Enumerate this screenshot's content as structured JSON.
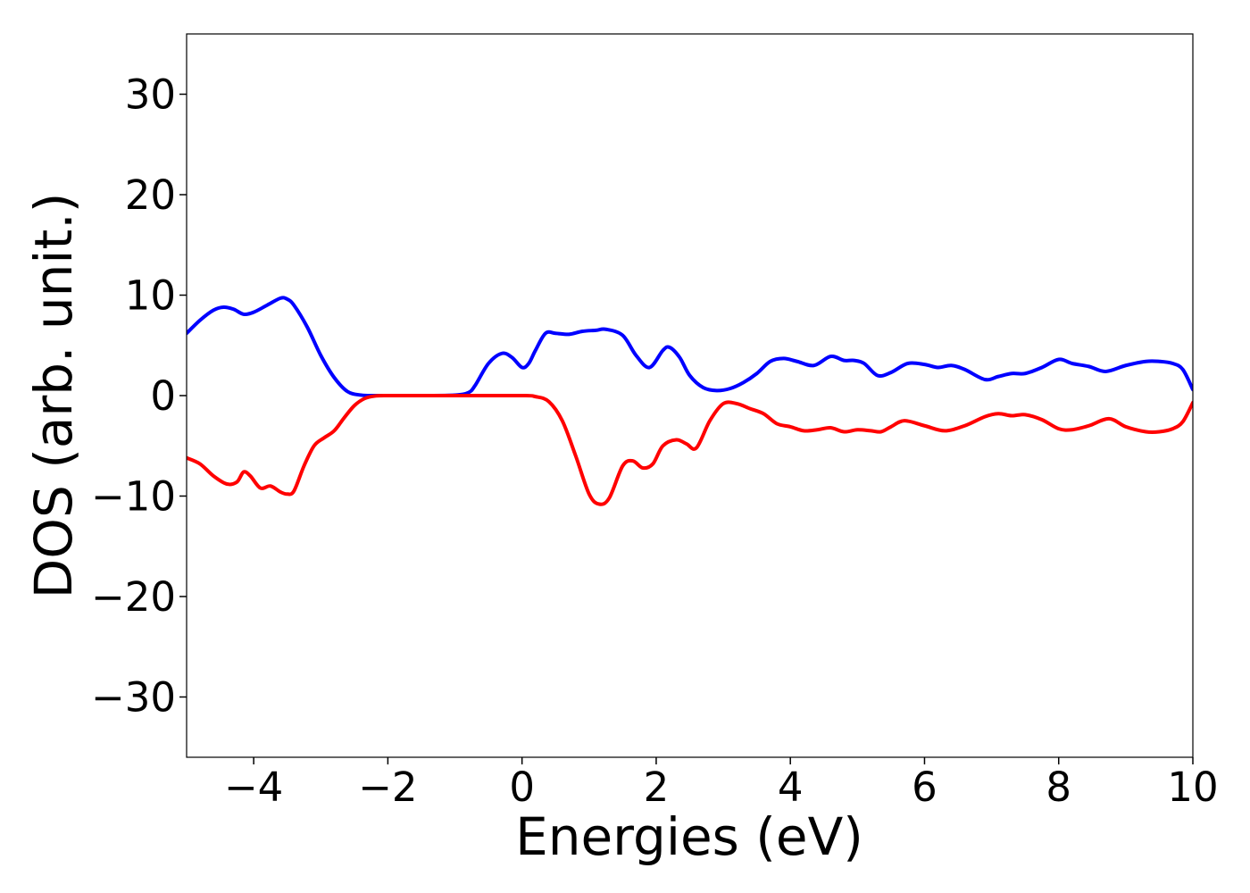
{
  "chart_data": {
    "type": "line",
    "title": "",
    "xlabel": "Energies (eV)",
    "ylabel": "DOS (arb. unit.)",
    "xlim": [
      -5,
      10
    ],
    "ylim": [
      -36,
      36
    ],
    "xticks": [
      -4,
      -2,
      0,
      2,
      4,
      6,
      8,
      10
    ],
    "yticks": [
      -30,
      -20,
      -10,
      0,
      10,
      20,
      30
    ],
    "xtick_labels": [
      "−4",
      "−2",
      "0",
      "2",
      "4",
      "6",
      "8",
      "10"
    ],
    "ytick_labels": [
      "−30",
      "−20",
      "−10",
      "0",
      "10",
      "20",
      "30"
    ],
    "grid": false,
    "legend": "none",
    "series": [
      {
        "color": "#0000ff",
        "x": [
          -5.0,
          -4.8,
          -4.6,
          -4.45,
          -4.3,
          -4.15,
          -4.0,
          -3.8,
          -3.6,
          -3.5,
          -3.4,
          -3.2,
          -3.0,
          -2.8,
          -2.6,
          -2.4,
          -2.2,
          -2.0,
          -1.5,
          -1.0,
          -0.8,
          -0.7,
          -0.5,
          -0.3,
          -0.15,
          0.0,
          0.1,
          0.2,
          0.35,
          0.5,
          0.7,
          0.9,
          1.1,
          1.25,
          1.5,
          1.7,
          1.9,
          2.1,
          2.2,
          2.35,
          2.5,
          2.7,
          2.9,
          3.1,
          3.3,
          3.5,
          3.7,
          3.9,
          4.1,
          4.35,
          4.6,
          4.8,
          4.95,
          5.1,
          5.3,
          5.5,
          5.75,
          6.0,
          6.2,
          6.4,
          6.6,
          6.9,
          7.1,
          7.3,
          7.5,
          7.75,
          8.0,
          8.2,
          8.45,
          8.7,
          9.0,
          9.3,
          9.5,
          9.7,
          9.85,
          10.0
        ],
        "y": [
          6.2,
          7.5,
          8.5,
          8.8,
          8.6,
          8.1,
          8.3,
          9.0,
          9.7,
          9.6,
          9.0,
          6.8,
          4.0,
          1.8,
          0.4,
          0.05,
          0.0,
          0.0,
          0.0,
          0.05,
          0.3,
          1.0,
          3.2,
          4.2,
          3.8,
          2.8,
          3.2,
          4.5,
          6.2,
          6.2,
          6.1,
          6.4,
          6.5,
          6.6,
          6.0,
          4.0,
          2.8,
          4.5,
          4.8,
          3.8,
          2.0,
          0.8,
          0.5,
          0.7,
          1.3,
          2.2,
          3.4,
          3.7,
          3.4,
          3.0,
          3.9,
          3.5,
          3.5,
          3.2,
          2.0,
          2.3,
          3.2,
          3.1,
          2.8,
          3.0,
          2.6,
          1.6,
          1.9,
          2.2,
          2.2,
          2.8,
          3.6,
          3.2,
          2.9,
          2.4,
          3.0,
          3.4,
          3.4,
          3.2,
          2.6,
          0.6
        ]
      },
      {
        "color": "#ff0000",
        "x": [
          -5.0,
          -4.8,
          -4.6,
          -4.4,
          -4.25,
          -4.15,
          -4.05,
          -3.9,
          -3.75,
          -3.6,
          -3.5,
          -3.4,
          -3.25,
          -3.1,
          -2.95,
          -2.8,
          -2.65,
          -2.5,
          -2.35,
          -2.2,
          -2.0,
          -1.0,
          0.0,
          0.2,
          0.4,
          0.6,
          0.8,
          1.0,
          1.15,
          1.3,
          1.5,
          1.65,
          1.8,
          1.95,
          2.1,
          2.3,
          2.45,
          2.6,
          2.8,
          3.0,
          3.2,
          3.4,
          3.6,
          3.8,
          4.0,
          4.2,
          4.4,
          4.6,
          4.8,
          5.0,
          5.2,
          5.35,
          5.5,
          5.7,
          6.0,
          6.3,
          6.6,
          6.9,
          7.1,
          7.3,
          7.5,
          7.75,
          8.0,
          8.2,
          8.45,
          8.75,
          9.0,
          9.3,
          9.5,
          9.7,
          9.85,
          10.0
        ],
        "y": [
          -6.2,
          -6.8,
          -8.0,
          -8.8,
          -8.6,
          -7.6,
          -8.0,
          -9.2,
          -9.0,
          -9.6,
          -9.8,
          -9.5,
          -7.0,
          -5.0,
          -4.2,
          -3.5,
          -2.2,
          -1.0,
          -0.3,
          -0.05,
          0.0,
          0.0,
          0.0,
          -0.1,
          -0.6,
          -2.5,
          -6.0,
          -9.8,
          -10.8,
          -10.2,
          -7.0,
          -6.5,
          -7.2,
          -6.8,
          -5.0,
          -4.4,
          -4.8,
          -5.2,
          -2.5,
          -0.8,
          -0.8,
          -1.3,
          -1.8,
          -2.8,
          -3.1,
          -3.5,
          -3.4,
          -3.2,
          -3.6,
          -3.4,
          -3.5,
          -3.6,
          -3.1,
          -2.5,
          -3.0,
          -3.5,
          -3.0,
          -2.1,
          -1.8,
          -2.0,
          -1.9,
          -2.4,
          -3.3,
          -3.4,
          -3.0,
          -2.3,
          -3.1,
          -3.6,
          -3.6,
          -3.3,
          -2.6,
          -0.7
        ]
      }
    ]
  }
}
